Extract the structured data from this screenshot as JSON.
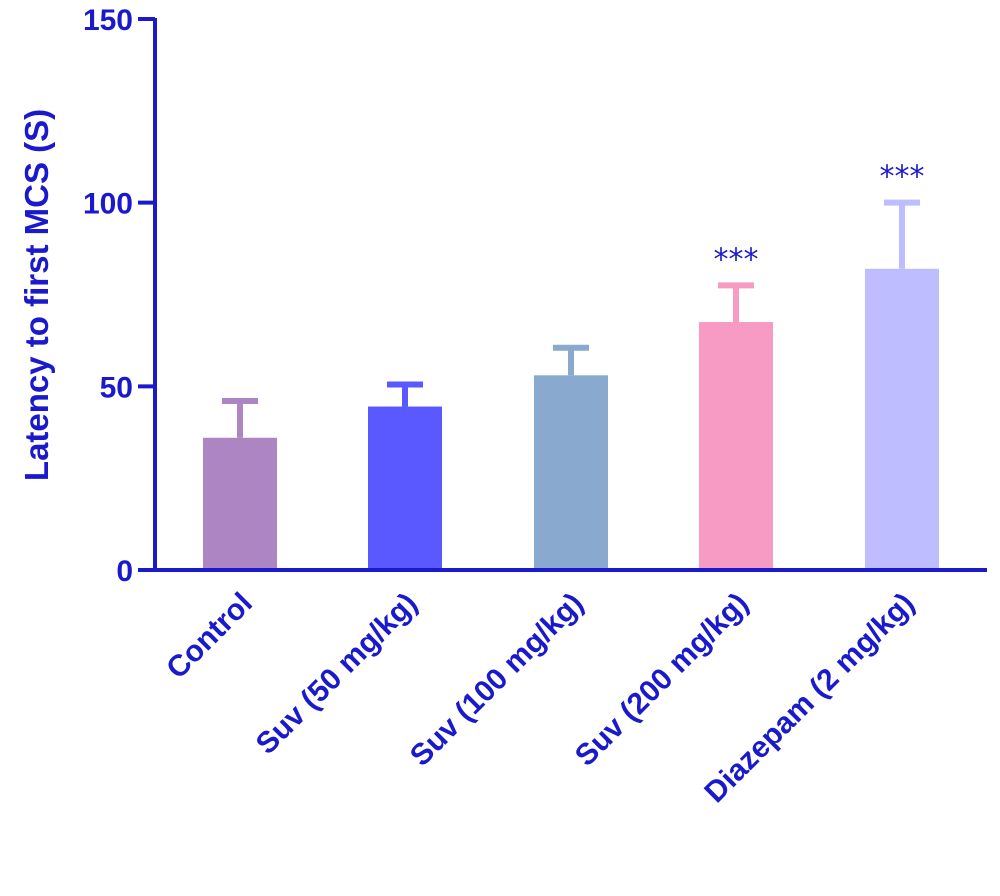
{
  "chart_data": {
    "type": "bar",
    "title": "",
    "xlabel": "",
    "ylabel": "Latency to first MCS (S)",
    "ylim": [
      0,
      150
    ],
    "yticks": [
      "0",
      "50",
      "100",
      "150"
    ],
    "categories": [
      "Control",
      "Suv (50 mg/kg)",
      "Suv (100 mg/kg)",
      "Suv (200 mg/kg)",
      "Diazepam (2 mg/kg)"
    ],
    "values": [
      36,
      44.5,
      53,
      67.5,
      82
    ],
    "errors": [
      10,
      6,
      7.5,
      10,
      18
    ],
    "significance": [
      "",
      "",
      "",
      "***",
      "***"
    ],
    "colors": [
      "#ad85c2",
      "#5959ff",
      "#8aa9cf",
      "#f79ac4",
      "#bdbdff"
    ],
    "axis_color": "#1a1acc",
    "grid": false,
    "legend": "none"
  }
}
